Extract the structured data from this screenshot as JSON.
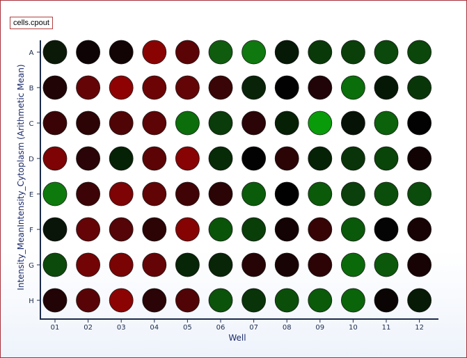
{
  "dataset_label": "cells.cpout",
  "chart_data": {
    "type": "heatmap",
    "layout": "96-well plate",
    "xlabel": "Well",
    "ylabel": "Intensity_MeanIntensity_Cytoplasm  (Arithmetic Mean)",
    "columns": [
      "01",
      "02",
      "03",
      "04",
      "05",
      "06",
      "07",
      "08",
      "09",
      "10",
      "11",
      "12"
    ],
    "rows": [
      "A",
      "B",
      "C",
      "D",
      "E",
      "F",
      "G",
      "H"
    ],
    "colors": [
      [
        "#0b1a08",
        "#0e0405",
        "#120305",
        "#8a0303",
        "#5a0406",
        "#0f5c0f",
        "#0f780f",
        "#061806",
        "#093909",
        "#0a3f0a",
        "#0b480b",
        "#0b460b"
      ],
      [
        "#200406",
        "#650407",
        "#8e0203",
        "#6c0405",
        "#630506",
        "#3a0506",
        "#082308",
        "#020202",
        "#200408",
        "#0a6e0a",
        "#051705",
        "#093609"
      ],
      [
        "#3a0406",
        "#2c0406",
        "#4f0506",
        "#5c0406",
        "#0b6e0b",
        "#0a3b0a",
        "#2a0406",
        "#062006",
        "#0a9b0a",
        "#061206",
        "#0b620b",
        "#020202"
      ],
      [
        "#7d0304",
        "#2a0406",
        "#062206",
        "#5c0405",
        "#870304",
        "#072a07",
        "#020202",
        "#2b0406",
        "#062206",
        "#093409",
        "#094409",
        "#110304"
      ],
      [
        "#0e7a0e",
        "#3c0406",
        "#7d0304",
        "#610406",
        "#400406",
        "#2b0406",
        "#0a5c0a",
        "#010101",
        "#0a5a0a",
        "#0b3f0b",
        "#0b4e0b",
        "#0b4b0b"
      ],
      [
        "#081508",
        "#650407",
        "#550407",
        "#2c0406",
        "#860304",
        "#0a540a",
        "#093e09",
        "#140304",
        "#370406",
        "#0a580a",
        "#040404",
        "#170304"
      ],
      [
        "#0b4a0b",
        "#730405",
        "#7a0304",
        "#650406",
        "#072507",
        "#082508",
        "#260406",
        "#180404",
        "#2c0406",
        "#0a6a0a",
        "#0b580b",
        "#170304"
      ],
      [
        "#220406",
        "#580406",
        "#8c0303",
        "#2a0406",
        "#500406",
        "#0b520b",
        "#093309",
        "#0a4e0a",
        "#0a5a0a",
        "#0a640a",
        "#0a0404",
        "#061a06"
      ]
    ]
  }
}
